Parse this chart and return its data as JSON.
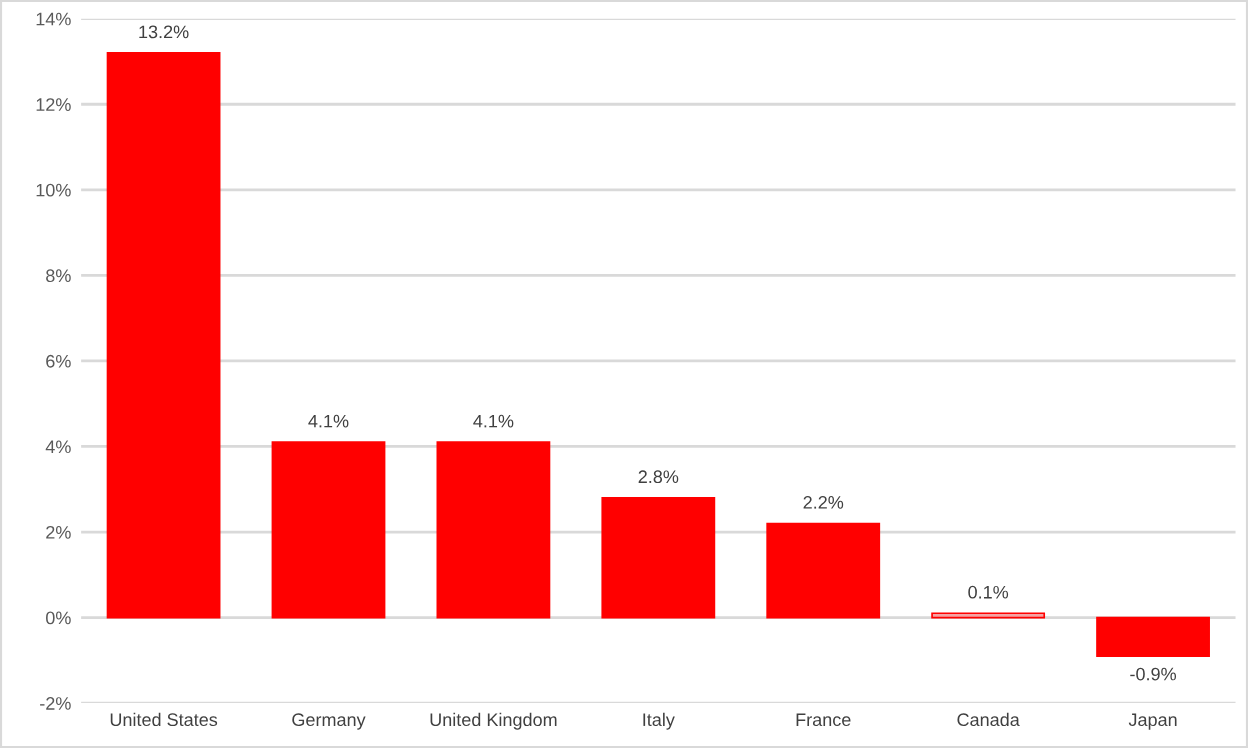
{
  "chart_data": {
    "type": "bar",
    "categories": [
      "United States",
      "Germany",
      "United Kingdom",
      "Italy",
      "France",
      "Canada",
      "Japan"
    ],
    "values": [
      13.2,
      4.1,
      4.1,
      2.8,
      2.2,
      0.1,
      -0.9
    ],
    "value_labels": [
      "13.2%",
      "4.1%",
      "4.1%",
      "2.8%",
      "2.2%",
      "0.1%",
      "-0.9%"
    ],
    "colors": [
      "#ff0000",
      "#ff0000",
      "#ff0000",
      "#ff0000",
      "#ff0000",
      "#f4a3a3",
      "#ff0000"
    ],
    "ylim": [
      -2,
      14
    ],
    "yticks": [
      {
        "value": -2,
        "label": "-2%"
      },
      {
        "value": 0,
        "label": "0%"
      },
      {
        "value": 2,
        "label": "2%"
      },
      {
        "value": 4,
        "label": "4%"
      },
      {
        "value": 6,
        "label": "6%"
      },
      {
        "value": 8,
        "label": "8%"
      },
      {
        "value": 10,
        "label": "10%"
      },
      {
        "value": 12,
        "label": "12%"
      },
      {
        "value": 14,
        "label": "14%"
      }
    ],
    "grid": "y"
  }
}
